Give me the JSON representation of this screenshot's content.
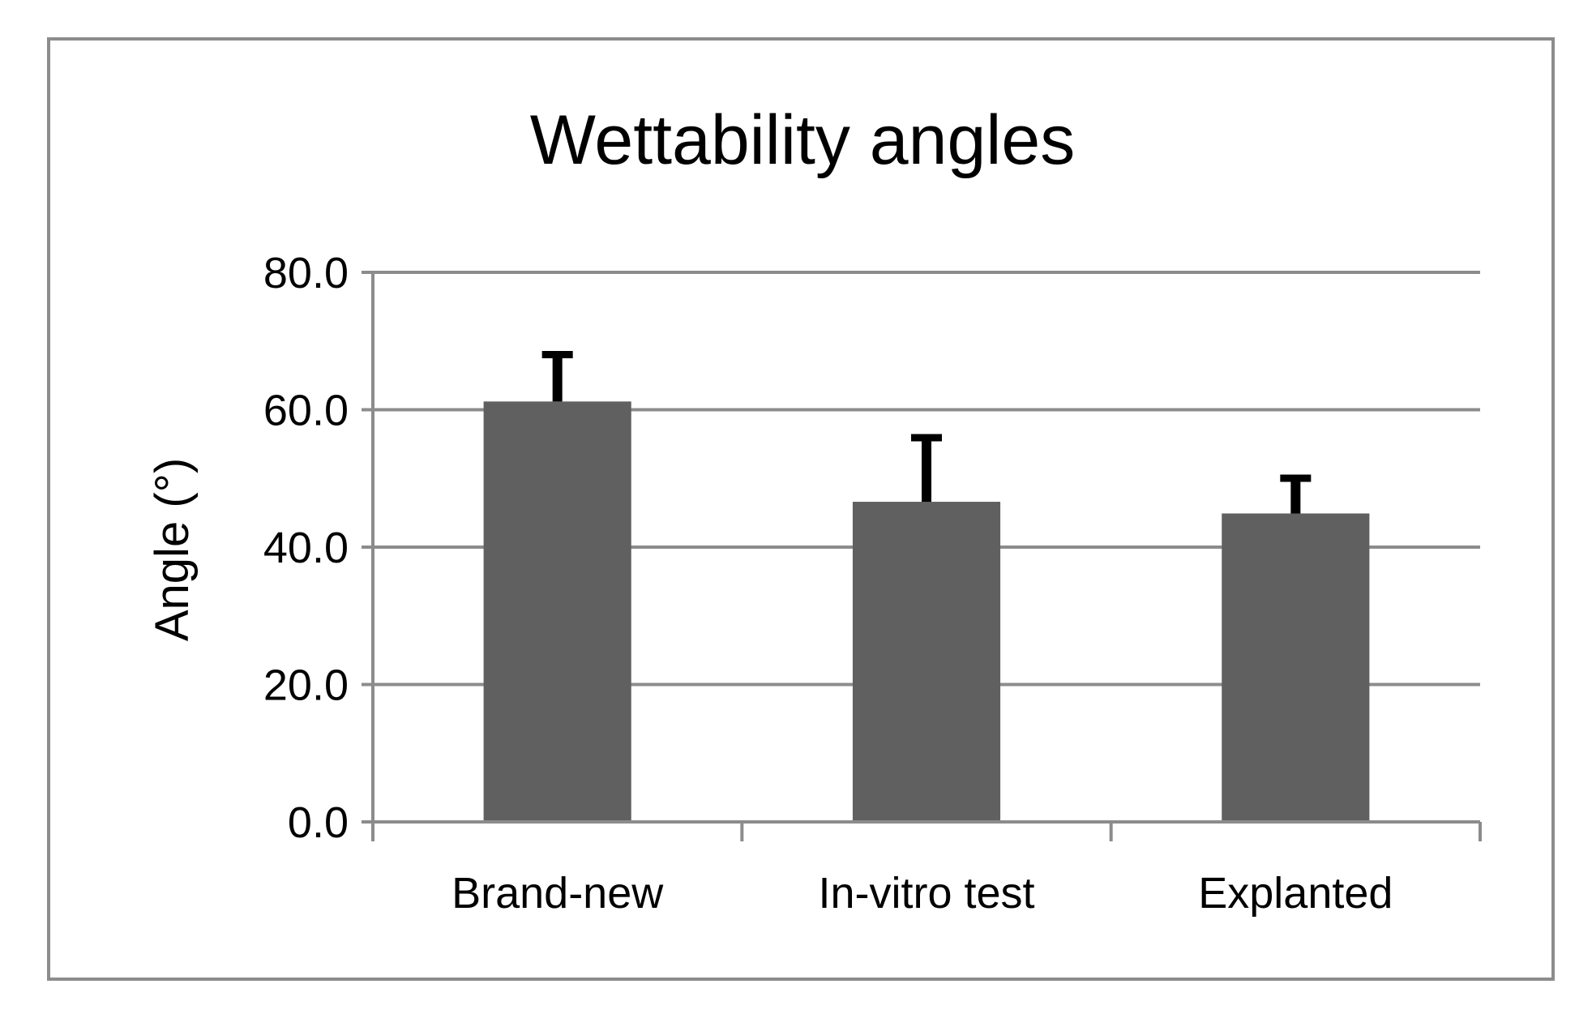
{
  "chart_data": {
    "type": "bar",
    "title": "Wettability angles",
    "xlabel": "",
    "ylabel": "Angle (°)",
    "categories": [
      "Brand-new",
      "In-vitro test",
      "Explanted"
    ],
    "series": [
      {
        "name": "Angle",
        "values": [
          61.2,
          46.6,
          44.9
        ],
        "error_plus": [
          7.3,
          9.8,
          5.6
        ]
      }
    ],
    "ylim": [
      0,
      80
    ],
    "yticks": [
      0,
      20,
      40,
      60,
      80
    ],
    "ytick_labels": [
      "0.0",
      "20.0",
      "40.0",
      "60.0",
      "80.0"
    ],
    "grid": true,
    "legend": "none",
    "colors": {
      "bar": "#606060",
      "error_bar": "#000000",
      "grid": "#8c8c8c",
      "axis": "#8c8c8c",
      "frame": "#8c8c8c"
    }
  }
}
